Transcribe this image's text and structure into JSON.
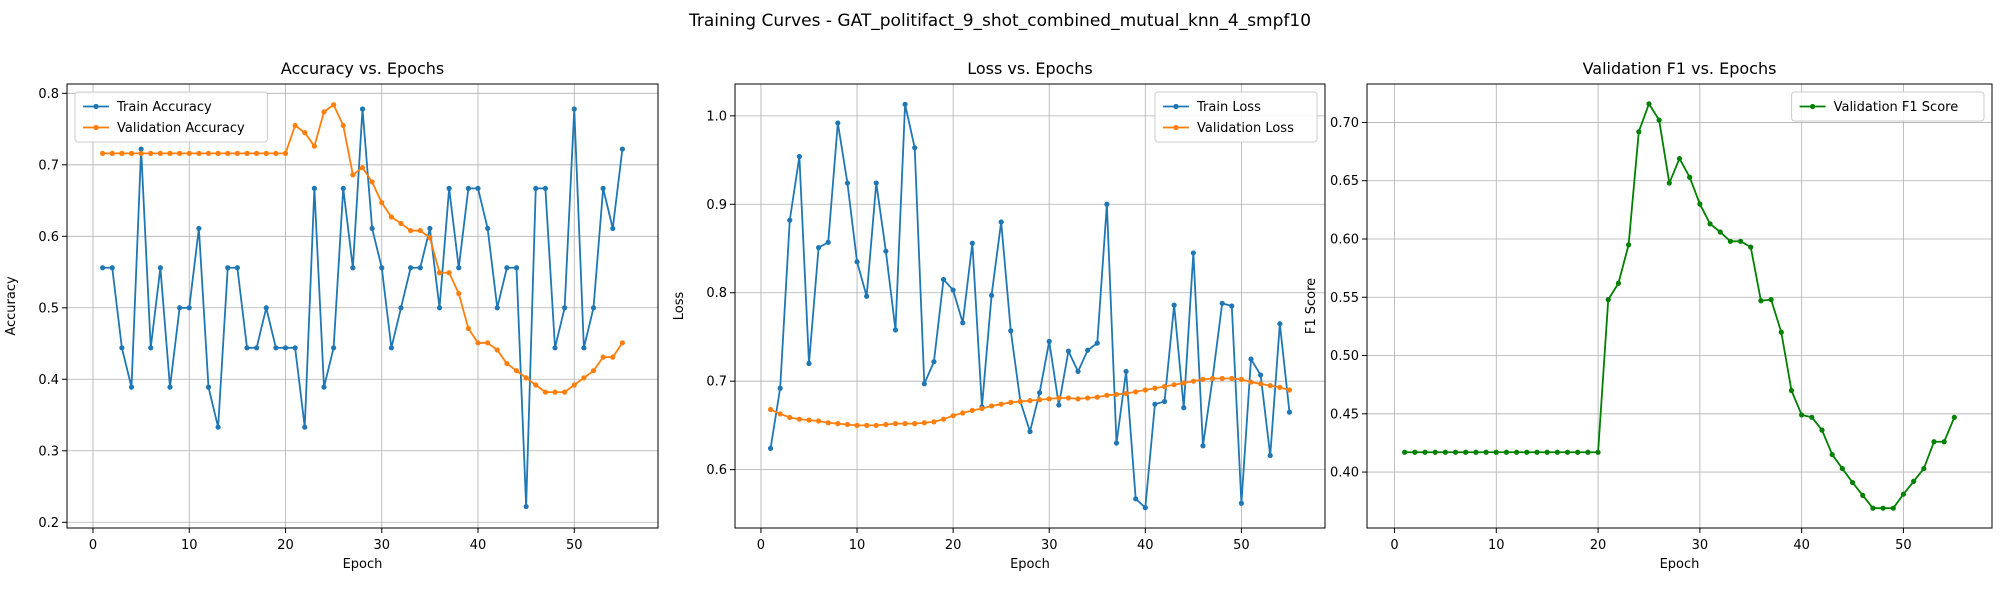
{
  "figure": {
    "suptitle": "Training Curves - GAT_politifact_9_shot_combined_mutual_knn_4_smpf10"
  },
  "colors": {
    "train": "#1f77b4",
    "validation": "#ff7f0e",
    "f1": "#008000",
    "grid": "#b0b0b0"
  },
  "chart_data": [
    {
      "type": "line",
      "title": "Accuracy vs. Epochs",
      "xlabel": "Epoch",
      "ylabel": "Accuracy",
      "xlim": [
        -2.7,
        58.7
      ],
      "ylim": [
        0.192,
        0.813
      ],
      "xticks": [
        0,
        10,
        20,
        30,
        40,
        50
      ],
      "yticks": [
        0.2,
        0.3,
        0.4,
        0.5,
        0.6,
        0.7,
        0.8
      ],
      "ytick_decimals": 1,
      "grid": true,
      "legend_loc": "top-left",
      "series": [
        {
          "name": "Train Accuracy",
          "color": "#1f77b4",
          "values": [
            0.556,
            0.556,
            0.444,
            0.389,
            0.722,
            0.444,
            0.556,
            0.389,
            0.5,
            0.5,
            0.611,
            0.389,
            0.333,
            0.556,
            0.556,
            0.444,
            0.444,
            0.5,
            0.444,
            0.444,
            0.444,
            0.333,
            0.667,
            0.389,
            0.444,
            0.667,
            0.556,
            0.778,
            0.611,
            0.556,
            0.444,
            0.5,
            0.556,
            0.556,
            0.611,
            0.5,
            0.667,
            0.556,
            0.667,
            0.667,
            0.611,
            0.5,
            0.556,
            0.556,
            0.222,
            0.667,
            0.667,
            0.444,
            0.5,
            0.778,
            0.444,
            0.5,
            0.667,
            0.611,
            0.722
          ]
        },
        {
          "name": "Validation Accuracy",
          "color": "#ff7f0e",
          "values": [
            0.716,
            0.716,
            0.716,
            0.716,
            0.716,
            0.716,
            0.716,
            0.716,
            0.716,
            0.716,
            0.716,
            0.716,
            0.716,
            0.716,
            0.716,
            0.716,
            0.716,
            0.716,
            0.716,
            0.716,
            0.755,
            0.745,
            0.726,
            0.774,
            0.784,
            0.755,
            0.686,
            0.696,
            0.676,
            0.647,
            0.627,
            0.618,
            0.608,
            0.608,
            0.598,
            0.549,
            0.549,
            0.52,
            0.471,
            0.451,
            0.451,
            0.441,
            0.422,
            0.412,
            0.402,
            0.392,
            0.382,
            0.382,
            0.382,
            0.392,
            0.402,
            0.412,
            0.431,
            0.431,
            0.451
          ]
        }
      ]
    },
    {
      "type": "line",
      "title": "Loss vs. Epochs",
      "xlabel": "Epoch",
      "ylabel": "Loss",
      "xlim": [
        -2.7,
        58.7
      ],
      "ylim": [
        0.534,
        1.036
      ],
      "xticks": [
        0,
        10,
        20,
        30,
        40,
        50
      ],
      "yticks": [
        0.6,
        0.7,
        0.8,
        0.9,
        1.0
      ],
      "ytick_decimals": 1,
      "grid": true,
      "legend_loc": "top-right",
      "series": [
        {
          "name": "Train Loss",
          "color": "#1f77b4",
          "values": [
            0.624,
            0.692,
            0.882,
            0.954,
            0.72,
            0.851,
            0.857,
            0.992,
            0.924,
            0.835,
            0.796,
            0.924,
            0.847,
            0.758,
            1.013,
            0.964,
            0.697,
            0.722,
            0.815,
            0.803,
            0.766,
            0.856,
            0.671,
            0.797,
            0.88,
            0.757,
            0.677,
            0.643,
            0.687,
            0.745,
            0.673,
            0.734,
            0.711,
            0.735,
            0.743,
            0.9,
            0.63,
            0.711,
            0.567,
            0.557,
            0.674,
            0.677,
            0.786,
            0.67,
            0.845,
            0.627,
            0.703,
            0.788,
            0.785,
            0.562,
            0.725,
            0.707,
            0.616,
            0.765,
            0.665
          ]
        },
        {
          "name": "Validation Loss",
          "color": "#ff7f0e",
          "values": [
            0.668,
            0.663,
            0.659,
            0.657,
            0.656,
            0.655,
            0.653,
            0.652,
            0.651,
            0.65,
            0.65,
            0.65,
            0.651,
            0.652,
            0.652,
            0.652,
            0.653,
            0.654,
            0.657,
            0.661,
            0.664,
            0.667,
            0.669,
            0.672,
            0.674,
            0.676,
            0.677,
            0.678,
            0.679,
            0.68,
            0.681,
            0.681,
            0.68,
            0.681,
            0.682,
            0.684,
            0.685,
            0.686,
            0.688,
            0.69,
            0.692,
            0.694,
            0.696,
            0.698,
            0.7,
            0.702,
            0.703,
            0.703,
            0.703,
            0.702,
            0.699,
            0.697,
            0.695,
            0.693,
            0.69
          ]
        }
      ]
    },
    {
      "type": "line",
      "title": "Validation F1 vs. Epochs",
      "xlabel": "Epoch",
      "ylabel": "F1 Score",
      "xlim": [
        -2.7,
        58.7
      ],
      "ylim": [
        0.352,
        0.733
      ],
      "xticks": [
        0,
        10,
        20,
        30,
        40,
        50
      ],
      "yticks": [
        0.4,
        0.45,
        0.5,
        0.55,
        0.6,
        0.65,
        0.7
      ],
      "ytick_decimals": 2,
      "grid": true,
      "legend_loc": "top-right",
      "series": [
        {
          "name": "Validation F1 Score",
          "color": "#008000",
          "values": [
            0.417,
            0.417,
            0.417,
            0.417,
            0.417,
            0.417,
            0.417,
            0.417,
            0.417,
            0.417,
            0.417,
            0.417,
            0.417,
            0.417,
            0.417,
            0.417,
            0.417,
            0.417,
            0.417,
            0.417,
            0.548,
            0.562,
            0.595,
            0.692,
            0.716,
            0.702,
            0.648,
            0.669,
            0.653,
            0.63,
            0.613,
            0.606,
            0.598,
            0.598,
            0.593,
            0.547,
            0.548,
            0.52,
            0.47,
            0.449,
            0.447,
            0.436,
            0.415,
            0.403,
            0.391,
            0.38,
            0.369,
            0.369,
            0.369,
            0.381,
            0.392,
            0.403,
            0.426,
            0.426,
            0.447
          ]
        }
      ]
    }
  ]
}
